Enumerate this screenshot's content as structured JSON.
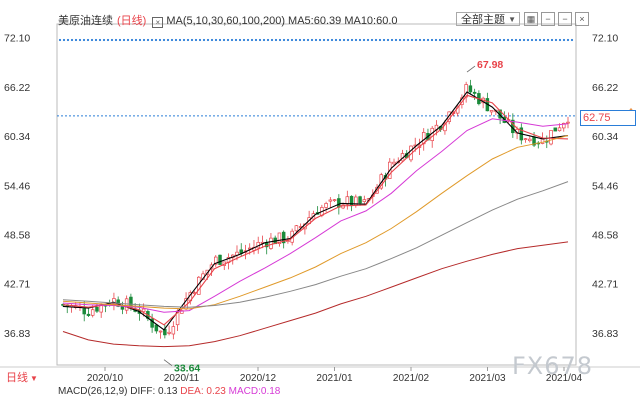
{
  "header": {
    "symbol": "美原油连续",
    "period": "日线",
    "ma_label": "MA(5,10,30,60,100,200)",
    "ma5": "MA5:60.39",
    "ma10": "MA10:60.0"
  },
  "toolbar": {
    "range_select": "全部主题",
    "icons": [
      "grid-icon",
      "minus-icon",
      "minus-icon",
      "close-icon"
    ]
  },
  "period_selector": "日线",
  "indicator_text": {
    "macd": "MACD(26,12,9)",
    "diff": "DIFF: 0.13",
    "dea": "DEA: 0.23",
    "macd_val": "MACD:0.18"
  },
  "current_price": "62.75",
  "watermark": "FX678",
  "colors": {
    "up": "#e8434a",
    "down": "#1a8a3a",
    "ma5": "#000000",
    "ma10": "#e8434a",
    "ma30": "#d63ad6",
    "ma60": "#e09a2a",
    "ma100": "#888888",
    "ma200": "#b52a2a",
    "dots": "#2a7dd8"
  },
  "chart_data": {
    "type": "candlestick",
    "title": "",
    "xlabel": "",
    "ylabel": "",
    "ylim": [
      33,
      73
    ],
    "y_ticks": [
      72.1,
      66.22,
      60.34,
      54.46,
      48.58,
      42.71,
      36.83
    ],
    "x_ticks": [
      "2020/10",
      "2020/11",
      "2020/12",
      "2021/01",
      "2021/02",
      "2021/03",
      "2021/04"
    ],
    "annotations": [
      {
        "label": "67.98",
        "x": "2021/03 wk1",
        "y": 67.98,
        "type": "high"
      },
      {
        "label": "33.64",
        "x": "2020/11 early",
        "y": 33.64,
        "type": "low"
      }
    ],
    "current_price": 62.75,
    "close_points": [
      {
        "x": "2020/09 end",
        "y": 40.2
      },
      {
        "x": "2020/10 start",
        "y": 39.5
      },
      {
        "x": "2020/10 mid",
        "y": 40.8
      },
      {
        "x": "2020/10 late",
        "y": 39.6
      },
      {
        "x": "2020/11 early",
        "y": 36.5
      },
      {
        "x": "2020/11 mid",
        "y": 41.5
      },
      {
        "x": "2020/11 late",
        "y": 45.5
      },
      {
        "x": "2020/12 early",
        "y": 46.3
      },
      {
        "x": "2020/12 mid",
        "y": 47.8
      },
      {
        "x": "2020/12 late",
        "y": 48.2
      },
      {
        "x": "2021/01 early",
        "y": 51.5
      },
      {
        "x": "2021/01 mid",
        "y": 52.5
      },
      {
        "x": "2021/01 late",
        "y": 52.2
      },
      {
        "x": "2021/02 early",
        "y": 57.0
      },
      {
        "x": "2021/02 mid",
        "y": 59.5
      },
      {
        "x": "2021/02 late",
        "y": 62.0
      },
      {
        "x": "2021/03 early",
        "y": 66.0
      },
      {
        "x": "2021/03 mid",
        "y": 63.5
      },
      {
        "x": "2021/03 late",
        "y": 60.5
      },
      {
        "x": "2021/04 early",
        "y": 59.8
      },
      {
        "x": "2021/04 now",
        "y": 62.75
      }
    ],
    "series": [
      {
        "name": "MA5",
        "values": [
          40.0,
          39.8,
          40.5,
          39.4,
          37.2,
          41.2,
          45.1,
          46.2,
          47.6,
          48.1,
          51.0,
          52.3,
          52.2,
          56.5,
          59.2,
          61.6,
          65.6,
          63.8,
          60.7,
          60.0,
          60.39
        ]
      },
      {
        "name": "MA10",
        "values": [
          40.2,
          39.9,
          40.3,
          39.6,
          37.8,
          40.5,
          44.5,
          45.9,
          47.2,
          48.0,
          50.5,
          52.0,
          52.1,
          56.0,
          58.8,
          61.2,
          65.2,
          64.3,
          61.2,
          60.1,
          60.0
        ]
      },
      {
        "name": "MA30",
        "values": [
          40.4,
          40.2,
          40.1,
          39.9,
          39.3,
          39.5,
          41.2,
          43.0,
          44.6,
          46.3,
          48.2,
          50.2,
          51.4,
          53.5,
          56.2,
          58.5,
          61.0,
          62.4,
          62.0,
          61.5,
          61.8
        ]
      },
      {
        "name": "MA60",
        "values": [
          40.6,
          40.4,
          40.2,
          40.0,
          39.8,
          39.7,
          40.2,
          41.2,
          42.3,
          43.4,
          44.7,
          46.3,
          47.6,
          49.3,
          51.3,
          53.5,
          55.6,
          57.6,
          59.0,
          59.6,
          60.4
        ]
      },
      {
        "name": "MA100",
        "values": [
          40.8,
          40.6,
          40.4,
          40.2,
          40.0,
          39.9,
          40.1,
          40.5,
          41.1,
          41.8,
          42.6,
          43.6,
          44.5,
          45.7,
          47.0,
          48.5,
          50.0,
          51.5,
          52.8,
          53.8,
          54.9
        ]
      },
      {
        "name": "MA200",
        "values": [
          37.0,
          36.0,
          35.5,
          35.3,
          35.2,
          35.3,
          35.8,
          36.5,
          37.4,
          38.3,
          39.2,
          40.3,
          41.2,
          42.3,
          43.4,
          44.5,
          45.4,
          46.2,
          46.9,
          47.3,
          47.7
        ]
      }
    ]
  }
}
